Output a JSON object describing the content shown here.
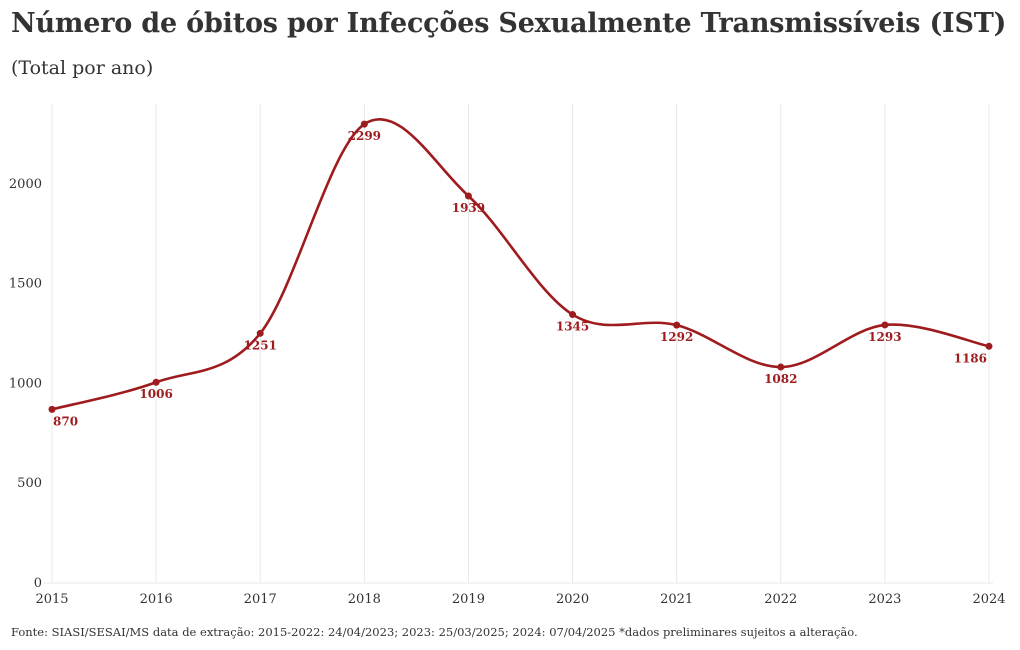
{
  "header": {
    "title": "Número de óbitos por Infecções Sexualmente Transmissíveis (IST)",
    "subtitle": "(Total por ano)"
  },
  "footer": {
    "source": "Fonte: SIASI/SESAI/MS data de extração: 2015-2022: 24/04/2023; 2023: 25/03/2025; 2024: 07/04/2025 *dados preliminares sujeitos a alteração."
  },
  "colors": {
    "line": "#9e1b1e",
    "grid": "#e8e8e8",
    "text": "#333333"
  },
  "chart_data": {
    "type": "line",
    "title": "Número de óbitos por Infecções Sexualmente Transmissíveis (IST)",
    "subtitle": "(Total por ano)",
    "x": [
      "2015",
      "2016",
      "2017",
      "2018",
      "2019",
      "2020",
      "2021",
      "2022",
      "2023",
      "2024"
    ],
    "values": [
      870,
      1006,
      1251,
      2299,
      1939,
      1345,
      1292,
      1082,
      1293,
      1186
    ],
    "yticks": [
      0,
      500,
      1000,
      1500,
      2000
    ],
    "ylim": [
      0,
      2400
    ],
    "xlabel": "",
    "ylabel": "",
    "grid": "vertical",
    "smooth": true,
    "data_labels": true
  }
}
